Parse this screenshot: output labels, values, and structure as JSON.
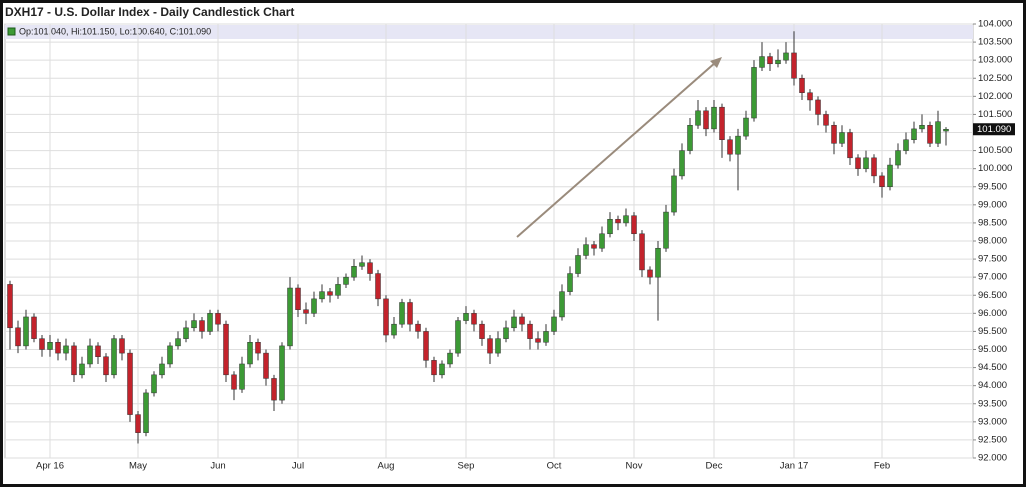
{
  "chart_data": {
    "type": "candlestick",
    "title": "DXH17 - U.S. Dollar Index - Daily Candlestick Chart",
    "legend_text": "Op:101.040, Hi:101.150, Lo:100.640, C:101.090",
    "last_price_label": "101.090",
    "up_color": "#3c9a35",
    "down_color": "#c3232c",
    "grid": true,
    "categories": [
      null,
      null,
      null,
      null,
      null,
      "Apr 16",
      null,
      null,
      null,
      null,
      null,
      null,
      null,
      null,
      null,
      null,
      "May",
      null,
      null,
      null,
      null,
      null,
      null,
      null,
      null,
      null,
      "Jun",
      null,
      null,
      null,
      null,
      null,
      null,
      null,
      null,
      null,
      "Jul",
      null,
      null,
      null,
      null,
      null,
      null,
      null,
      null,
      null,
      null,
      "Aug",
      null,
      null,
      null,
      null,
      null,
      null,
      null,
      null,
      null,
      "Sep",
      null,
      null,
      null,
      null,
      null,
      null,
      null,
      null,
      null,
      null,
      "Oct",
      null,
      null,
      null,
      null,
      null,
      null,
      null,
      null,
      null,
      "Nov",
      null,
      null,
      null,
      null,
      null,
      null,
      null,
      null,
      null,
      "Dec",
      null,
      null,
      null,
      null,
      null,
      null,
      null,
      null,
      null,
      "Jan 17",
      null,
      null,
      null,
      null,
      null,
      null,
      null,
      null,
      null,
      null,
      "Feb",
      null,
      null,
      null,
      null,
      null,
      null,
      null,
      null
    ],
    "open": [
      96.8,
      95.6,
      95.1,
      95.9,
      95.3,
      95.0,
      95.2,
      94.9,
      95.1,
      94.3,
      94.6,
      95.1,
      94.8,
      94.3,
      95.3,
      94.9,
      93.2,
      92.7,
      93.8,
      94.3,
      94.6,
      95.1,
      95.3,
      95.6,
      95.8,
      95.5,
      96.0,
      95.7,
      94.3,
      93.9,
      94.6,
      95.2,
      94.9,
      94.2,
      93.6,
      95.1,
      96.7,
      96.1,
      96.0,
      96.4,
      96.6,
      96.5,
      96.8,
      97.0,
      97.3,
      97.4,
      97.1,
      96.4,
      95.4,
      95.7,
      96.3,
      95.7,
      95.5,
      94.7,
      94.3,
      94.6,
      94.9,
      95.8,
      96.0,
      95.7,
      95.3,
      94.9,
      95.3,
      95.6,
      95.9,
      95.7,
      95.3,
      95.2,
      95.5,
      95.9,
      96.6,
      97.1,
      97.6,
      97.9,
      97.8,
      98.2,
      98.6,
      98.5,
      98.7,
      98.2,
      97.2,
      97.0,
      97.8,
      98.8,
      99.8,
      100.5,
      101.2,
      101.6,
      101.1,
      101.7,
      100.8,
      100.4,
      100.9,
      101.4,
      102.8,
      103.1,
      102.9,
      103.0,
      103.2,
      102.5,
      102.1,
      101.9,
      101.5,
      101.2,
      100.7,
      101.0,
      100.3,
      100.0,
      100.3,
      99.8,
      99.5,
      100.1,
      100.5,
      100.8,
      101.1,
      101.2,
      100.7,
      101.04
    ],
    "high": [
      96.9,
      95.8,
      96.1,
      96.0,
      95.4,
      95.4,
      95.3,
      95.3,
      95.2,
      94.8,
      95.3,
      95.2,
      94.9,
      95.4,
      95.4,
      95.0,
      93.3,
      93.9,
      94.4,
      94.8,
      95.2,
      95.5,
      95.8,
      96.0,
      95.9,
      96.1,
      96.1,
      95.8,
      94.4,
      94.8,
      95.4,
      95.3,
      95.0,
      94.3,
      95.2,
      97.0,
      96.8,
      96.3,
      96.6,
      96.8,
      96.7,
      97.0,
      97.1,
      97.5,
      97.6,
      97.5,
      97.2,
      96.5,
      95.9,
      96.4,
      96.4,
      95.8,
      95.6,
      94.8,
      94.7,
      95.0,
      95.9,
      96.2,
      96.1,
      95.8,
      95.4,
      95.5,
      95.8,
      96.1,
      96.0,
      95.8,
      95.5,
      95.7,
      96.1,
      96.8,
      97.3,
      97.8,
      98.1,
      98.0,
      98.4,
      98.8,
      98.7,
      98.9,
      98.8,
      98.3,
      97.3,
      98.0,
      99.0,
      100.0,
      100.7,
      101.4,
      101.9,
      101.7,
      101.9,
      101.8,
      100.9,
      101.1,
      101.6,
      103.0,
      103.5,
      103.2,
      103.3,
      103.5,
      103.8,
      102.6,
      102.2,
      102.0,
      101.6,
      101.3,
      101.2,
      101.1,
      100.4,
      100.5,
      100.4,
      99.9,
      100.3,
      100.7,
      101.0,
      101.3,
      101.5,
      101.3,
      101.6,
      101.15
    ],
    "low": [
      95.0,
      94.9,
      95.0,
      95.2,
      94.8,
      94.8,
      94.7,
      94.7,
      94.1,
      94.2,
      94.5,
      94.6,
      94.1,
      94.2,
      94.7,
      93.0,
      92.4,
      92.6,
      93.7,
      94.2,
      94.5,
      95.0,
      95.2,
      95.5,
      95.3,
      95.4,
      95.5,
      94.1,
      93.6,
      93.8,
      94.5,
      94.7,
      94.0,
      93.3,
      93.5,
      95.0,
      95.9,
      95.7,
      95.9,
      96.3,
      96.3,
      96.4,
      96.7,
      96.9,
      97.2,
      96.9,
      96.2,
      95.2,
      95.3,
      95.6,
      95.5,
      95.3,
      94.5,
      94.1,
      94.2,
      94.5,
      94.8,
      95.7,
      95.5,
      95.1,
      94.6,
      94.8,
      95.2,
      95.5,
      95.5,
      95.0,
      95.0,
      95.1,
      95.4,
      95.8,
      96.5,
      97.0,
      97.5,
      97.6,
      97.7,
      98.1,
      98.3,
      98.4,
      98.0,
      97.0,
      96.8,
      95.8,
      97.7,
      98.7,
      99.7,
      100.4,
      101.1,
      100.9,
      101.0,
      100.3,
      100.2,
      99.4,
      100.8,
      101.3,
      102.7,
      102.7,
      102.8,
      102.9,
      102.3,
      101.9,
      101.6,
      101.2,
      101.0,
      100.4,
      100.6,
      100.1,
      99.8,
      99.9,
      99.6,
      99.2,
      99.4,
      100.0,
      100.4,
      100.7,
      101.0,
      100.6,
      100.6,
      100.64
    ],
    "close": [
      95.6,
      95.1,
      95.9,
      95.3,
      95.0,
      95.2,
      94.9,
      95.1,
      94.3,
      94.6,
      95.1,
      94.8,
      94.3,
      95.3,
      94.9,
      93.2,
      92.7,
      93.8,
      94.3,
      94.6,
      95.1,
      95.3,
      95.6,
      95.8,
      95.5,
      96.0,
      95.7,
      94.3,
      93.9,
      94.6,
      95.2,
      94.9,
      94.2,
      93.6,
      95.1,
      96.7,
      96.1,
      96.0,
      96.4,
      96.6,
      96.5,
      96.8,
      97.0,
      97.3,
      97.4,
      97.1,
      96.4,
      95.4,
      95.7,
      96.3,
      95.7,
      95.5,
      94.7,
      94.3,
      94.6,
      94.9,
      95.8,
      96.0,
      95.7,
      95.3,
      94.9,
      95.3,
      95.6,
      95.9,
      95.7,
      95.3,
      95.2,
      95.5,
      95.9,
      96.6,
      97.1,
      97.6,
      97.9,
      97.8,
      98.2,
      98.6,
      98.5,
      98.7,
      98.2,
      97.2,
      97.0,
      97.8,
      98.8,
      99.8,
      100.5,
      101.2,
      101.6,
      101.1,
      101.7,
      100.8,
      100.4,
      100.9,
      101.4,
      102.8,
      103.1,
      102.9,
      103.0,
      103.2,
      102.5,
      102.1,
      101.9,
      101.5,
      101.2,
      100.7,
      101.0,
      100.3,
      100.0,
      100.3,
      99.8,
      99.5,
      100.1,
      100.5,
      100.8,
      101.1,
      101.2,
      100.7,
      101.3,
      101.09
    ],
    "ylim": [
      92,
      104
    ],
    "yticks": [
      {
        "value": 92,
        "label": "92.000"
      },
      {
        "value": 92.5,
        "label": "92.500"
      },
      {
        "value": 93,
        "label": "93.000"
      },
      {
        "value": 93.5,
        "label": "93.500"
      },
      {
        "value": 94,
        "label": "94.000"
      },
      {
        "value": 94.5,
        "label": "94.500"
      },
      {
        "value": 95,
        "label": "95.000"
      },
      {
        "value": 95.5,
        "label": "95.500"
      },
      {
        "value": 96,
        "label": "96.000"
      },
      {
        "value": 96.5,
        "label": "96.500"
      },
      {
        "value": 97,
        "label": "97.000"
      },
      {
        "value": 97.5,
        "label": "97.500"
      },
      {
        "value": 98,
        "label": "98.000"
      },
      {
        "value": 98.5,
        "label": "98.500"
      },
      {
        "value": 99,
        "label": "99.000"
      },
      {
        "value": 99.5,
        "label": "99.500"
      },
      {
        "value": 100,
        "label": "100.000"
      },
      {
        "value": 100.5,
        "label": "100.500"
      },
      {
        "value": 101,
        "label": "101.000"
      },
      {
        "value": 101.5,
        "label": "101.500"
      },
      {
        "value": 102,
        "label": "102.000"
      },
      {
        "value": 102.5,
        "label": "102.500"
      },
      {
        "value": 103,
        "label": "103.000"
      },
      {
        "value": 103.5,
        "label": "103.500"
      },
      {
        "value": 104,
        "label": "104.000"
      }
    ]
  }
}
